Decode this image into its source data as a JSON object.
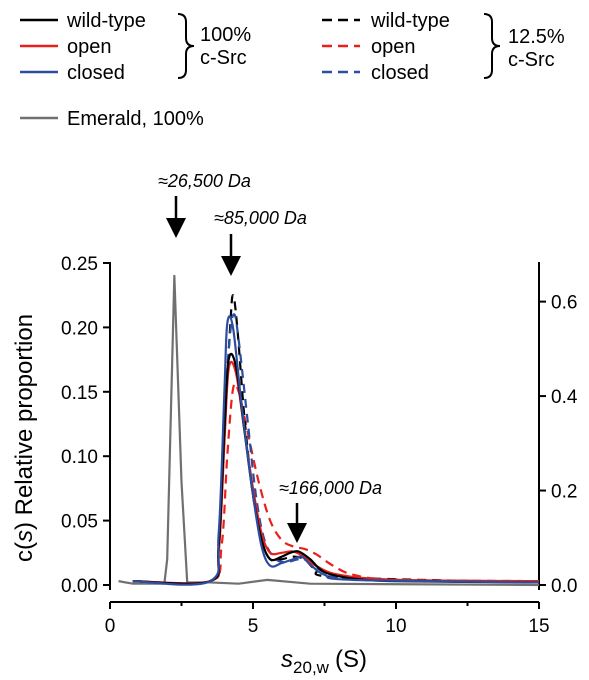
{
  "chart_data": {
    "type": "line",
    "xlabel_main": "s",
    "xlabel_sub": "20,w",
    "xlabel_unit": "(S)",
    "ylabel_left_a": "c(",
    "ylabel_left_s": "s",
    "ylabel_left_b": ") Relative proportion",
    "xlim": [
      0,
      15
    ],
    "ylim_left": [
      0,
      0.25
    ],
    "ylim_right": [
      0,
      0.6
    ],
    "x_ticks": [
      "0",
      "5",
      "10",
      "15"
    ],
    "y_left_ticks": [
      "0.00",
      "0.05",
      "0.10",
      "0.15",
      "0.20",
      "0.25"
    ],
    "y_right_ticks": [
      "0.0",
      "0.2",
      "0.4",
      "0.6"
    ],
    "legend": {
      "group1": {
        "items": [
          "wild-type",
          "open",
          "closed"
        ],
        "brace_label_1": "100%",
        "brace_label_2": "c-Src"
      },
      "group2": {
        "items": [
          "wild-type",
          "open",
          "closed"
        ],
        "brace_label_1": "12.5%",
        "brace_label_2": "c-Src"
      },
      "emerald": "Emerald, 100%"
    },
    "annotations": [
      {
        "text": "≈26,500 Da",
        "x": 2.3
      },
      {
        "text": "≈85,000 Da",
        "x": 4.3
      },
      {
        "text": "≈166,000 Da",
        "x": 6.6
      }
    ],
    "series": [
      {
        "name": "wild-type",
        "group": "100% c-Src",
        "color": "#000000",
        "dash": false,
        "points": [
          [
            0.8,
            0.003
          ],
          [
            3.5,
            0.003
          ],
          [
            3.8,
            0.03
          ],
          [
            4.0,
            0.12
          ],
          [
            4.15,
            0.175
          ],
          [
            4.4,
            0.17
          ],
          [
            4.7,
            0.12
          ],
          [
            5.0,
            0.07
          ],
          [
            5.3,
            0.035
          ],
          [
            5.6,
            0.02
          ],
          [
            6.0,
            0.022
          ],
          [
            6.3,
            0.025
          ],
          [
            6.6,
            0.026
          ],
          [
            7.0,
            0.02
          ],
          [
            7.5,
            0.01
          ],
          [
            8.5,
            0.005
          ],
          [
            10,
            0.003
          ],
          [
            15,
            0.002
          ]
        ]
      },
      {
        "name": "open",
        "group": "100% c-Src",
        "color": "#e8211d",
        "dash": false,
        "points": [
          [
            0.8,
            0.003
          ],
          [
            3.5,
            0.003
          ],
          [
            3.8,
            0.025
          ],
          [
            4.0,
            0.11
          ],
          [
            4.15,
            0.168
          ],
          [
            4.4,
            0.165
          ],
          [
            4.7,
            0.12
          ],
          [
            5.0,
            0.075
          ],
          [
            5.3,
            0.04
          ],
          [
            5.6,
            0.025
          ],
          [
            6.0,
            0.025
          ],
          [
            6.4,
            0.026
          ],
          [
            6.8,
            0.022
          ],
          [
            7.2,
            0.015
          ],
          [
            8,
            0.008
          ],
          [
            10,
            0.004
          ],
          [
            15,
            0.003
          ]
        ]
      },
      {
        "name": "closed",
        "group": "100% c-Src",
        "color": "#2d4d9e",
        "dash": false,
        "points": [
          [
            0.8,
            0.003
          ],
          [
            3.5,
            0.003
          ],
          [
            3.8,
            0.04
          ],
          [
            4.0,
            0.15
          ],
          [
            4.1,
            0.203
          ],
          [
            4.3,
            0.2
          ],
          [
            4.6,
            0.14
          ],
          [
            5.0,
            0.07
          ],
          [
            5.3,
            0.03
          ],
          [
            5.6,
            0.015
          ],
          [
            6.0,
            0.017
          ],
          [
            6.4,
            0.02
          ],
          [
            6.7,
            0.022
          ],
          [
            7.0,
            0.016
          ],
          [
            7.5,
            0.008
          ],
          [
            8.5,
            0.004
          ],
          [
            15,
            0.002
          ]
        ]
      },
      {
        "name": "wild-type",
        "group": "12.5% c-Src",
        "color": "#000000",
        "dash": true,
        "points": [
          [
            0.8,
            0.003
          ],
          [
            3.5,
            0.003
          ],
          [
            3.8,
            0.03
          ],
          [
            4.0,
            0.12
          ],
          [
            4.2,
            0.2
          ],
          [
            4.3,
            0.225
          ],
          [
            4.45,
            0.2
          ],
          [
            4.7,
            0.13
          ],
          [
            5.0,
            0.07
          ],
          [
            5.3,
            0.035
          ],
          [
            5.6,
            0.02
          ],
          [
            6.0,
            0.02
          ],
          [
            6.4,
            0.022
          ],
          [
            6.8,
            0.02
          ],
          [
            7.2,
            0.012
          ],
          [
            8,
            0.006
          ],
          [
            15,
            0.002
          ]
        ]
      },
      {
        "name": "open",
        "group": "12.5% c-Src",
        "color": "#e8211d",
        "dash": true,
        "points": [
          [
            0.8,
            0.003
          ],
          [
            3.5,
            0.003
          ],
          [
            3.9,
            0.03
          ],
          [
            4.1,
            0.1
          ],
          [
            4.3,
            0.152
          ],
          [
            4.5,
            0.15
          ],
          [
            4.8,
            0.12
          ],
          [
            5.2,
            0.08
          ],
          [
            5.6,
            0.05
          ],
          [
            6.0,
            0.035
          ],
          [
            6.4,
            0.03
          ],
          [
            6.8,
            0.028
          ],
          [
            7.2,
            0.024
          ],
          [
            7.8,
            0.015
          ],
          [
            8.5,
            0.008
          ],
          [
            10,
            0.004
          ],
          [
            15,
            0.003
          ]
        ]
      },
      {
        "name": "closed",
        "group": "12.5% c-Src",
        "color": "#2d4d9e",
        "dash": true,
        "points": [
          [
            0.8,
            0.003
          ],
          [
            3.5,
            0.003
          ],
          [
            3.8,
            0.035
          ],
          [
            4.0,
            0.13
          ],
          [
            4.2,
            0.195
          ],
          [
            4.35,
            0.21
          ],
          [
            4.5,
            0.19
          ],
          [
            4.8,
            0.13
          ],
          [
            5.1,
            0.07
          ],
          [
            5.4,
            0.035
          ],
          [
            5.8,
            0.02
          ],
          [
            6.2,
            0.018
          ],
          [
            6.6,
            0.02
          ],
          [
            7.0,
            0.018
          ],
          [
            7.5,
            0.01
          ],
          [
            8.5,
            0.005
          ],
          [
            15,
            0.002
          ]
        ]
      },
      {
        "name": "Emerald, 100%",
        "group": "Emerald",
        "color": "#707070",
        "dash": false,
        "points": [
          [
            0.3,
            0.003
          ],
          [
            0.8,
            0.001
          ],
          [
            1.9,
            0.001
          ],
          [
            2.0,
            0.02
          ],
          [
            2.25,
            0.24
          ],
          [
            2.5,
            0.08
          ],
          [
            2.7,
            0.002
          ],
          [
            3.5,
            0.002
          ],
          [
            4.5,
            0.001
          ],
          [
            5.5,
            0.004
          ],
          [
            7,
            0.001
          ],
          [
            15,
            0.0
          ]
        ]
      }
    ]
  }
}
